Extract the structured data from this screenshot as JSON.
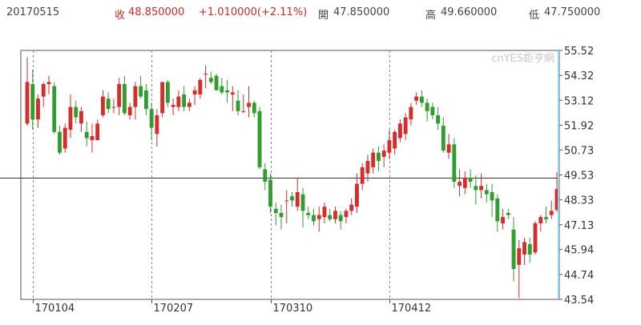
{
  "header": {
    "date": "20170515",
    "close_label": "收",
    "close_value": "48.850000",
    "change": "+1.010000(+2.11%)",
    "open_label": "開",
    "open_value": "47.850000",
    "high_label": "高",
    "high_value": "49.660000",
    "low_label": "低",
    "low_value": "47.750000"
  },
  "watermark": "cnYES鉅亨網",
  "colors": {
    "up": "#d62c2c",
    "down": "#2f9e2f",
    "grid": "#888888",
    "ref": "#333333",
    "cursor": "#8fd3e8"
  },
  "chart_data": {
    "type": "candlestick",
    "title": "",
    "xlabel": "",
    "ylabel": "",
    "ylim": [
      43.54,
      55.52
    ],
    "y_ticks": [
      "55.52",
      "54.32",
      "53.12",
      "51.92",
      "50.73",
      "49.53",
      "48.33",
      "47.13",
      "45.94",
      "44.74",
      "43.54"
    ],
    "x_tick_labels": [
      "170104",
      "170207",
      "170310",
      "170412"
    ],
    "x_tick_index": [
      1,
      23,
      45,
      67
    ],
    "reference_price": 49.4,
    "grid": "dashed vertical lines at month starts",
    "candles_ohlc": [
      [
        52.0,
        55.2,
        51.9,
        54.0
      ],
      [
        53.9,
        54.6,
        51.7,
        52.2
      ],
      [
        52.2,
        53.4,
        51.8,
        53.2
      ],
      [
        53.3,
        54.0,
        52.8,
        53.9
      ],
      [
        53.9,
        54.3,
        53.4,
        54.0
      ],
      [
        53.8,
        54.0,
        51.5,
        51.6
      ],
      [
        51.6,
        51.9,
        50.5,
        50.6
      ],
      [
        50.8,
        52.0,
        50.6,
        51.8
      ],
      [
        51.7,
        53.4,
        51.3,
        52.8
      ],
      [
        52.8,
        53.1,
        52.0,
        52.3
      ],
      [
        52.0,
        52.8,
        51.6,
        52.6
      ],
      [
        51.6,
        52.1,
        50.9,
        51.3
      ],
      [
        51.2,
        52.0,
        50.6,
        51.4
      ],
      [
        51.2,
        52.2,
        51.2,
        52.0
      ],
      [
        52.4,
        53.6,
        52.3,
        53.3
      ],
      [
        53.2,
        53.5,
        52.5,
        52.7
      ],
      [
        52.8,
        53.2,
        52.5,
        52.8
      ],
      [
        52.8,
        54.2,
        52.4,
        53.9
      ],
      [
        53.9,
        54.3,
        52.4,
        52.5
      ],
      [
        52.4,
        53.0,
        52.2,
        52.8
      ],
      [
        52.8,
        54.0,
        52.2,
        53.8
      ],
      [
        53.8,
        54.3,
        53.2,
        53.3
      ],
      [
        53.6,
        53.9,
        52.4,
        52.7
      ],
      [
        52.7,
        53.0,
        51.2,
        51.8
      ],
      [
        51.5,
        52.7,
        50.9,
        52.4
      ],
      [
        52.5,
        54.0,
        52.3,
        54.0
      ],
      [
        54.0,
        54.1,
        52.8,
        53.0
      ],
      [
        52.8,
        53.2,
        52.4,
        52.9
      ],
      [
        52.8,
        53.6,
        52.6,
        53.3
      ],
      [
        53.4,
        53.8,
        52.6,
        52.8
      ],
      [
        52.8,
        53.2,
        52.6,
        53.0
      ],
      [
        53.4,
        53.8,
        52.9,
        53.6
      ],
      [
        53.4,
        54.2,
        53.2,
        54.1
      ],
      [
        54.4,
        54.8,
        53.7,
        54.4
      ],
      [
        54.2,
        54.5,
        53.9,
        54.0
      ],
      [
        54.3,
        54.4,
        53.7,
        53.6
      ],
      [
        53.8,
        54.2,
        53.4,
        53.5
      ],
      [
        53.6,
        54.1,
        53.0,
        53.5
      ],
      [
        53.4,
        53.8,
        52.6,
        53.5
      ],
      [
        53.1,
        53.6,
        52.4,
        52.6
      ],
      [
        52.6,
        53.4,
        52.5,
        52.6
      ],
      [
        52.8,
        53.8,
        52.3,
        53.0
      ],
      [
        53.0,
        53.1,
        52.3,
        52.5
      ],
      [
        52.6,
        52.8,
        49.8,
        49.9
      ],
      [
        49.8,
        50.1,
        48.8,
        49.2
      ],
      [
        49.3,
        49.6,
        47.7,
        48.0
      ],
      [
        47.9,
        48.2,
        47.1,
        47.7
      ],
      [
        47.7,
        48.1,
        46.9,
        47.5
      ],
      [
        48.3,
        48.8,
        47.2,
        48.3
      ],
      [
        48.5,
        48.7,
        48.0,
        48.3
      ],
      [
        48.0,
        49.4,
        47.8,
        48.7
      ],
      [
        48.6,
        48.9,
        47.0,
        47.8
      ],
      [
        47.7,
        48.0,
        47.4,
        47.6
      ],
      [
        47.6,
        47.9,
        47.1,
        47.3
      ],
      [
        47.4,
        48.0,
        46.8,
        47.6
      ],
      [
        47.5,
        48.2,
        47.2,
        48.0
      ],
      [
        47.6,
        47.9,
        47.3,
        47.4
      ],
      [
        47.4,
        48.0,
        47.2,
        47.8
      ],
      [
        47.6,
        47.8,
        46.9,
        47.3
      ],
      [
        47.5,
        47.9,
        47.2,
        47.8
      ],
      [
        47.8,
        48.4,
        47.6,
        48.1
      ],
      [
        48.0,
        49.6,
        47.7,
        49.1
      ],
      [
        49.1,
        50.1,
        48.8,
        49.9
      ],
      [
        49.6,
        50.5,
        49.2,
        50.2
      ],
      [
        49.9,
        50.8,
        49.6,
        50.6
      ],
      [
        50.6,
        50.9,
        49.7,
        50.2
      ],
      [
        50.4,
        51.0,
        49.9,
        50.7
      ],
      [
        50.6,
        51.7,
        50.3,
        51.2
      ],
      [
        50.8,
        51.7,
        50.5,
        51.6
      ],
      [
        51.3,
        52.2,
        51.1,
        52.0
      ],
      [
        51.5,
        52.5,
        51.2,
        52.3
      ],
      [
        52.2,
        53.0,
        51.9,
        52.8
      ],
      [
        53.1,
        53.5,
        52.9,
        53.3
      ],
      [
        53.3,
        53.6,
        52.8,
        53.0
      ],
      [
        53.0,
        53.2,
        52.1,
        52.6
      ],
      [
        52.8,
        53.0,
        52.2,
        52.4
      ],
      [
        52.4,
        52.8,
        51.7,
        52.0
      ],
      [
        51.9,
        52.3,
        50.6,
        50.7
      ],
      [
        50.6,
        51.5,
        50.3,
        51.0
      ],
      [
        51.0,
        51.3,
        48.9,
        49.2
      ],
      [
        49.0,
        49.8,
        48.5,
        49.2
      ],
      [
        48.9,
        49.7,
        48.6,
        49.4
      ],
      [
        49.4,
        49.8,
        48.9,
        49.2
      ],
      [
        49.0,
        49.5,
        48.1,
        48.8
      ],
      [
        48.8,
        49.6,
        48.4,
        49.0
      ],
      [
        48.8,
        49.1,
        48.2,
        48.6
      ],
      [
        48.7,
        49.1,
        47.5,
        48.3
      ],
      [
        48.4,
        48.6,
        46.8,
        47.3
      ],
      [
        47.2,
        47.9,
        46.9,
        47.5
      ],
      [
        47.7,
        47.9,
        47.4,
        47.6
      ],
      [
        46.9,
        47.5,
        44.4,
        45.0
      ],
      [
        45.2,
        46.4,
        43.6,
        46.0
      ],
      [
        45.7,
        46.5,
        45.2,
        46.3
      ],
      [
        46.2,
        46.5,
        45.3,
        45.7
      ],
      [
        45.8,
        47.3,
        45.7,
        47.2
      ],
      [
        47.2,
        47.6,
        46.8,
        47.5
      ],
      [
        47.5,
        48.0,
        47.2,
        47.4
      ],
      [
        47.6,
        48.3,
        47.4,
        47.8
      ],
      [
        47.85,
        49.66,
        47.75,
        48.85
      ]
    ]
  }
}
